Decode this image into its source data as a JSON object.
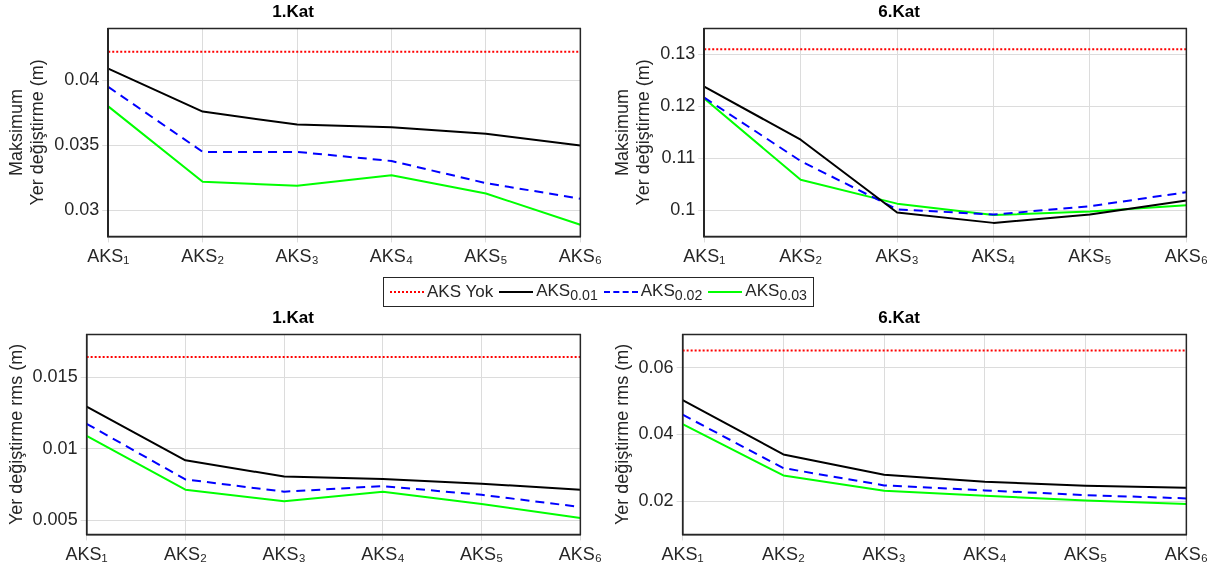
{
  "chart_data": [
    {
      "type": "line",
      "title": "1.Kat",
      "ylabel": "Maksimum\nYer değiştirme (m)",
      "categories": [
        "AKS₁",
        "AKS₂",
        "AKS₃",
        "AKS₄",
        "AKS₅",
        "AKS₆"
      ],
      "ylim": [
        0.028,
        0.044
      ],
      "yticks": [
        0.03,
        0.035,
        0.04
      ],
      "grid": true,
      "legend": "bottom",
      "marker": "none",
      "series": [
        {
          "name": "AKS Yok",
          "color": "#ff0000",
          "line_style": "dotted",
          "values": [
            0.0422,
            0.0422,
            0.0422,
            0.0422,
            0.0422,
            0.0422
          ]
        },
        {
          "name": "AKS$_{0.01}$",
          "color": "#000000",
          "line_style": "solid",
          "values": [
            0.0409,
            0.0376,
            0.0366,
            0.0364,
            0.0359,
            0.035
          ]
        },
        {
          "name": "AKS$_{0.02}$",
          "color": "#0000ff",
          "line_style": "dashed",
          "values": [
            0.0395,
            0.0345,
            0.0345,
            0.0338,
            0.0321,
            0.0309
          ]
        },
        {
          "name": "AKS$_{0.03}$",
          "color": "#00ff00",
          "line_style": "solid",
          "values": [
            0.038,
            0.0322,
            0.0319,
            0.0327,
            0.0313,
            0.0289
          ]
        }
      ]
    },
    {
      "type": "line",
      "title": "6.Kat",
      "ylabel": "Maksimum\nYer değiştirme (m)",
      "categories": [
        "AKS₁",
        "AKS₂",
        "AKS₃",
        "AKS₄",
        "AKS₅",
        "AKS₆"
      ],
      "ylim": [
        0.095,
        0.135
      ],
      "yticks": [
        0.1,
        0.11,
        0.12,
        0.13
      ],
      "grid": true,
      "marker": "none",
      "series": [
        {
          "color": "#ff0000",
          "line_style": "dotted",
          "values": [
            0.131,
            0.131,
            0.131,
            0.131,
            0.131,
            0.131
          ]
        },
        {
          "color": "#000000",
          "line_style": "solid",
          "values": [
            0.1238,
            0.1136,
            0.0996,
            0.0976,
            0.0992,
            0.1019
          ]
        },
        {
          "color": "#0000ff",
          "line_style": "dashed",
          "values": [
            0.1217,
            0.1095,
            0.1002,
            0.0992,
            0.1008,
            0.1035
          ]
        },
        {
          "color": "#00ff00",
          "line_style": "solid",
          "values": [
            0.1215,
            0.1059,
            0.1013,
            0.0991,
            0.0998,
            0.101
          ]
        }
      ]
    },
    {
      "type": "line",
      "title": "1.Kat",
      "ylabel": "Yer değiştirme rms (m)",
      "categories": [
        "AKS₁",
        "AKS₂",
        "AKS₃",
        "AKS₄",
        "AKS₅",
        "AKS₆"
      ],
      "ylim": [
        0.004,
        0.018
      ],
      "yticks": [
        0.005,
        0.01,
        0.015
      ],
      "grid": true,
      "marker": "none",
      "series": [
        {
          "color": "#ff0000",
          "line_style": "dotted",
          "values": [
            0.01642,
            0.01642,
            0.01642,
            0.01642,
            0.01642,
            0.01642
          ]
        },
        {
          "color": "#000000",
          "line_style": "solid",
          "values": [
            0.01294,
            0.00919,
            0.00805,
            0.00788,
            0.00755,
            0.00713
          ]
        },
        {
          "color": "#0000ff",
          "line_style": "dashed",
          "values": [
            0.01174,
            0.00785,
            0.00699,
            0.00738,
            0.00677,
            0.00592
          ]
        },
        {
          "color": "#00ff00",
          "line_style": "solid",
          "values": [
            0.01089,
            0.00713,
            0.00632,
            0.00699,
            0.00613,
            0.00514
          ]
        }
      ]
    },
    {
      "type": "line",
      "title": "6.Kat",
      "ylabel": "Yer değiştirme rms (m)",
      "categories": [
        "AKS₁",
        "AKS₂",
        "AKS₃",
        "AKS₄",
        "AKS₅",
        "AKS₆"
      ],
      "ylim": [
        0.01,
        0.07
      ],
      "yticks": [
        0.02,
        0.04,
        0.06
      ],
      "grid": true,
      "marker": "none",
      "series": [
        {
          "color": "#ff0000",
          "line_style": "dotted",
          "values": [
            0.0652,
            0.0652,
            0.0652,
            0.0652,
            0.0652,
            0.0652
          ]
        },
        {
          "color": "#000000",
          "line_style": "solid",
          "values": [
            0.0503,
            0.034,
            0.0279,
            0.0258,
            0.0246,
            0.024
          ]
        },
        {
          "color": "#0000ff",
          "line_style": "dashed",
          "values": [
            0.0459,
            0.0299,
            0.0247,
            0.0232,
            0.0218,
            0.0208
          ]
        },
        {
          "color": "#00ff00",
          "line_style": "solid",
          "values": [
            0.0431,
            0.0277,
            0.0231,
            0.0216,
            0.0202,
            0.0191
          ]
        }
      ]
    }
  ]
}
